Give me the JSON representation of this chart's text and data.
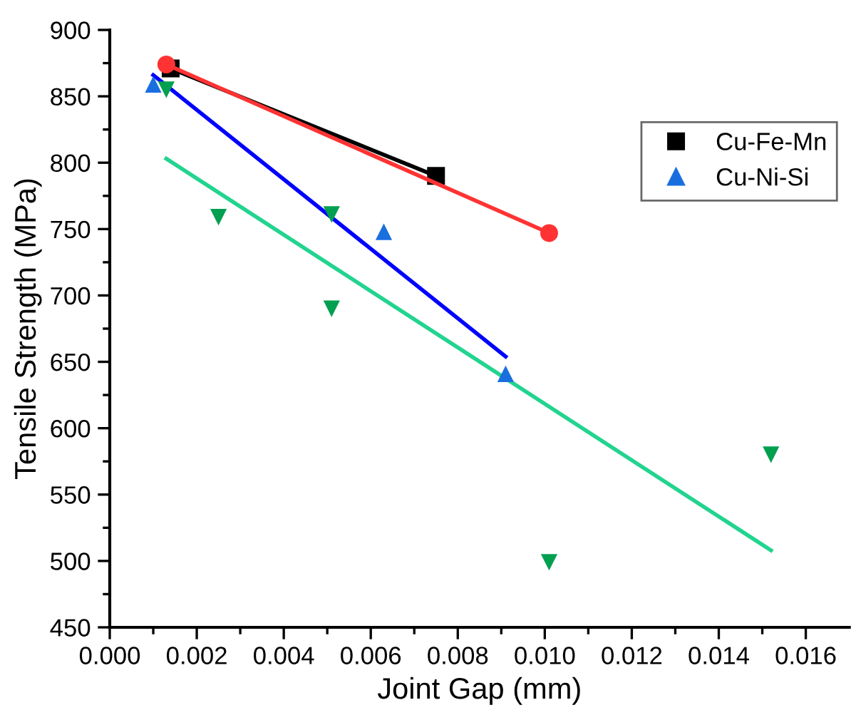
{
  "chart_data": {
    "type": "scatter",
    "xlabel": "Joint Gap (mm)",
    "ylabel": "Tensile Strength (MPa)",
    "xlim": [
      0,
      0.017
    ],
    "ylim": [
      450,
      900
    ],
    "xticks": [
      {
        "value": 0,
        "label": "0.000"
      },
      {
        "value": 0.001,
        "label": null
      },
      {
        "value": 0.002,
        "label": "0.002"
      },
      {
        "value": 0.003,
        "label": null
      },
      {
        "value": 0.004,
        "label": "0.004"
      },
      {
        "value": 0.005,
        "label": null
      },
      {
        "value": 0.006,
        "label": "0.006"
      },
      {
        "value": 0.007,
        "label": null
      },
      {
        "value": 0.008,
        "label": "0.008"
      },
      {
        "value": 0.009,
        "label": null
      },
      {
        "value": 0.01,
        "label": "0.010"
      },
      {
        "value": 0.011,
        "label": null
      },
      {
        "value": 0.012,
        "label": "0.012"
      },
      {
        "value": 0.013,
        "label": null
      },
      {
        "value": 0.014,
        "label": "0.014"
      },
      {
        "value": 0.015,
        "label": null
      },
      {
        "value": 0.016,
        "label": "0.016"
      }
    ],
    "yticks": [
      450,
      {
        "value": 475,
        "label": null
      },
      500,
      {
        "value": 525,
        "label": null
      },
      550,
      {
        "value": 575,
        "label": null
      },
      600,
      {
        "value": 625,
        "label": null
      },
      650,
      {
        "value": 675,
        "label": null
      },
      700,
      {
        "value": 725,
        "label": null
      },
      750,
      {
        "value": 775,
        "label": null
      },
      800,
      {
        "value": 825,
        "label": null
      },
      850,
      {
        "value": 875,
        "label": null
      },
      900
    ],
    "grid": false,
    "legend": "right",
    "series": [
      {
        "name": "Cu-Fe-Mn",
        "type": "line",
        "marker": "square",
        "color": "#000000",
        "x": [
          0.0014,
          0.0075
        ],
        "values": [
          871,
          790
        ]
      },
      {
        "type": "line",
        "marker": "circle",
        "color": "#ff3333",
        "x": [
          0.0013,
          0.0101
        ],
        "values": [
          874,
          747
        ]
      },
      {
        "name": "Cu-Ni-Si",
        "marker": "triangle",
        "color": "#1a6fdf",
        "x": [
          0.001,
          0.0063,
          0.0091
        ],
        "values": [
          859,
          748,
          641
        ]
      },
      {
        "type": "line",
        "marker": "none",
        "color": "#0000ff",
        "x": [
          0.001,
          0.0091
        ],
        "values": [
          866,
          654
        ]
      },
      {
        "marker": "triangle_down",
        "color": "#00a050",
        "x": [
          0.0013,
          0.0025,
          0.0051,
          0.0051,
          0.0101,
          0.0152
        ],
        "values": [
          855,
          759,
          761,
          690,
          499,
          580
        ]
      },
      {
        "type": "line",
        "marker": "none",
        "color": "#22d48f",
        "x": [
          0.0013,
          0.0152
        ],
        "values": [
          803,
          508
        ]
      }
    ]
  }
}
